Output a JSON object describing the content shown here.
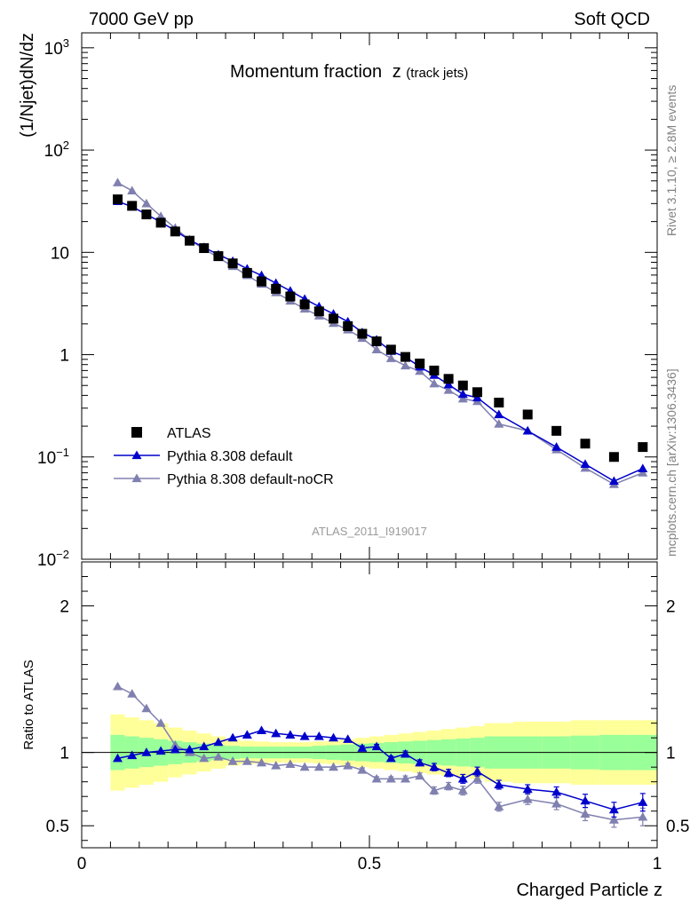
{
  "header": {
    "left": "7000 GeV pp",
    "right": "Soft QCD"
  },
  "side_labels": {
    "rivet": "Rivet 3.1.10, ≥ 2.8M events",
    "mcplots": "mcplots.cern.ch [arXiv:1306.3436]"
  },
  "chart_data": [
    {
      "panel": "main",
      "type": "scatter",
      "title": "Momentum fraction",
      "title_var": "z",
      "title_sub": "(track jets)",
      "ylabel": "(1/Njet)dN/dz",
      "yscale": "log",
      "ylim": [
        0.01,
        1400
      ],
      "xlim": [
        0,
        1
      ],
      "y_ticks": [
        {
          "value": 0.01,
          "base": "10",
          "exp": "−2"
        },
        {
          "value": 0.1,
          "base": "10",
          "exp": "−1"
        },
        {
          "value": 1,
          "base": "1",
          "exp": ""
        },
        {
          "value": 10,
          "base": "10",
          "exp": ""
        },
        {
          "value": 100,
          "base": "10",
          "exp": "2"
        },
        {
          "value": 1000,
          "base": "10",
          "exp": "3"
        }
      ],
      "watermark": "ATLAS_2011_I919017",
      "x": [
        0.0625,
        0.0875,
        0.1125,
        0.1375,
        0.1625,
        0.1875,
        0.2125,
        0.2375,
        0.2625,
        0.2875,
        0.3125,
        0.3375,
        0.3625,
        0.3875,
        0.4125,
        0.4375,
        0.4625,
        0.4875,
        0.5125,
        0.5375,
        0.5625,
        0.5875,
        0.6125,
        0.6375,
        0.6625,
        0.6875,
        0.725,
        0.775,
        0.825,
        0.875,
        0.925,
        0.975
      ],
      "series": [
        {
          "name": "ATLAS",
          "marker": "square",
          "color": "#000000",
          "values": [
            33,
            28.5,
            23.5,
            19.5,
            16,
            13,
            11,
            9.2,
            7.8,
            6.3,
            5.2,
            4.4,
            3.7,
            3.1,
            2.65,
            2.25,
            1.9,
            1.6,
            1.35,
            1.12,
            0.95,
            0.82,
            0.7,
            0.58,
            0.5,
            0.43,
            0.34,
            0.26,
            0.18,
            0.135,
            0.1,
            0.125
          ]
        },
        {
          "name": "Pythia 8.308 default",
          "marker": "triangle",
          "color": "#0000cc",
          "values": [
            31.5,
            28,
            23.5,
            19.8,
            16.3,
            13.2,
            11.2,
            9.5,
            8.2,
            6.9,
            5.95,
            5.0,
            4.2,
            3.5,
            2.95,
            2.5,
            2.1,
            1.65,
            1.4,
            1.08,
            0.95,
            0.76,
            0.63,
            0.51,
            0.41,
            0.38,
            0.26,
            0.18,
            0.125,
            0.085,
            0.058,
            0.077
          ]
        },
        {
          "name": "Pythia 8.308 default-noCR",
          "marker": "triangle",
          "color": "#8080b0",
          "values": [
            48,
            40,
            30,
            22.5,
            17.3,
            13.2,
            10.8,
            8.9,
            7.3,
            5.95,
            4.9,
            4.05,
            3.35,
            2.8,
            2.4,
            2.03,
            1.75,
            1.45,
            1.12,
            0.92,
            0.78,
            0.69,
            0.52,
            0.45,
            0.37,
            0.35,
            0.21,
            0.18,
            0.118,
            0.078,
            0.054,
            0.07
          ]
        }
      ],
      "legend_placement": "lower-left"
    },
    {
      "panel": "ratio",
      "type": "line",
      "ylabel": "Ratio to ATLAS",
      "xlabel": "Charged Particle z",
      "ylim": [
        0.35,
        2.3
      ],
      "xlim": [
        0,
        1
      ],
      "y_ticks": [
        0.5,
        1,
        2
      ],
      "y_tick_labels": [
        "0.5",
        "1",
        "2"
      ],
      "x_ticks": [
        0,
        0.5,
        1
      ],
      "x_tick_labels": [
        "0",
        "0.5",
        "1"
      ],
      "band_edges": [
        0.05,
        0.075,
        0.1,
        0.125,
        0.15,
        0.175,
        0.2,
        0.225,
        0.25,
        0.275,
        0.3,
        0.325,
        0.35,
        0.375,
        0.4,
        0.425,
        0.45,
        0.475,
        0.5,
        0.525,
        0.55,
        0.575,
        0.6,
        0.625,
        0.65,
        0.675,
        0.7,
        0.75,
        0.8,
        0.85,
        0.9,
        0.95,
        1.0
      ],
      "band_inner_half_width": [
        0.12,
        0.11,
        0.1,
        0.09,
        0.08,
        0.07,
        0.06,
        0.05,
        0.045,
        0.04,
        0.04,
        0.04,
        0.04,
        0.04,
        0.045,
        0.05,
        0.055,
        0.06,
        0.065,
        0.07,
        0.075,
        0.08,
        0.085,
        0.09,
        0.095,
        0.1,
        0.11,
        0.11,
        0.11,
        0.115,
        0.12,
        0.12
      ],
      "band_outer_half_width": [
        0.26,
        0.24,
        0.22,
        0.2,
        0.17,
        0.15,
        0.13,
        0.11,
        0.09,
        0.08,
        0.075,
        0.07,
        0.07,
        0.07,
        0.075,
        0.08,
        0.09,
        0.1,
        0.11,
        0.12,
        0.13,
        0.14,
        0.15,
        0.16,
        0.17,
        0.18,
        0.2,
        0.21,
        0.21,
        0.22,
        0.22,
        0.22
      ],
      "band_colors": {
        "inner": "#99ff99",
        "outer": "#ffff99"
      },
      "reference_line": 1,
      "series": [
        {
          "name": "Pythia 8.308 default",
          "color": "#0000cc",
          "values": [
            0.96,
            0.98,
            1.0,
            1.01,
            1.02,
            1.02,
            1.04,
            1.07,
            1.1,
            1.12,
            1.15,
            1.13,
            1.12,
            1.11,
            1.11,
            1.1,
            1.09,
            1.03,
            1.04,
            0.96,
            0.99,
            0.93,
            0.9,
            0.86,
            0.82,
            0.87,
            0.78,
            0.75,
            0.73,
            0.67,
            0.61,
            0.66
          ],
          "errors": [
            0.01,
            0.01,
            0.01,
            0.01,
            0.01,
            0.01,
            0.01,
            0.01,
            0.01,
            0.01,
            0.01,
            0.01,
            0.01,
            0.01,
            0.01,
            0.01,
            0.01,
            0.015,
            0.015,
            0.015,
            0.02,
            0.02,
            0.025,
            0.025,
            0.03,
            0.03,
            0.03,
            0.03,
            0.035,
            0.045,
            0.05,
            0.06
          ]
        },
        {
          "name": "Pythia 8.308 default-noCR",
          "color": "#8080b0",
          "values": [
            1.45,
            1.4,
            1.3,
            1.2,
            1.05,
            1.0,
            0.96,
            0.97,
            0.94,
            0.94,
            0.93,
            0.91,
            0.92,
            0.9,
            0.9,
            0.9,
            0.91,
            0.88,
            0.82,
            0.82,
            0.82,
            0.84,
            0.74,
            0.77,
            0.74,
            0.82,
            0.63,
            0.68,
            0.65,
            0.58,
            0.54,
            0.56
          ],
          "errors": [
            0.01,
            0.01,
            0.01,
            0.01,
            0.01,
            0.01,
            0.01,
            0.01,
            0.01,
            0.01,
            0.01,
            0.01,
            0.01,
            0.01,
            0.01,
            0.01,
            0.015,
            0.015,
            0.015,
            0.015,
            0.02,
            0.02,
            0.025,
            0.025,
            0.03,
            0.03,
            0.03,
            0.035,
            0.04,
            0.045,
            0.05,
            0.06
          ]
        }
      ]
    }
  ]
}
